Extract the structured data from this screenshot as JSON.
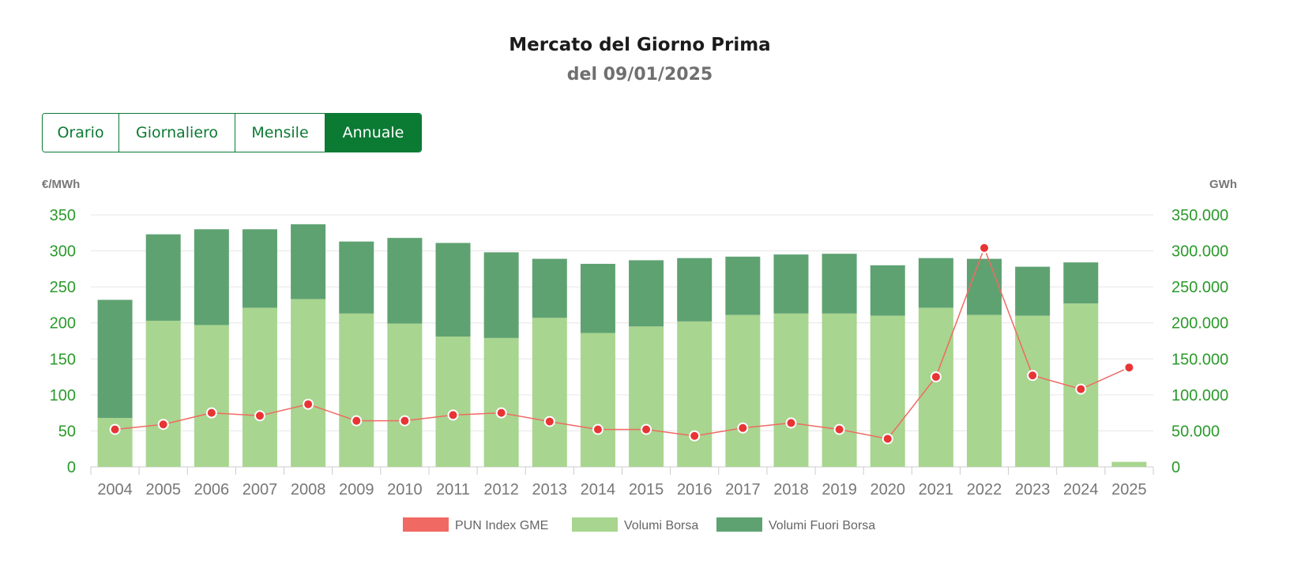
{
  "header": {
    "title": "Mercato del Giorno Prima",
    "subtitle": "del 09/01/2025"
  },
  "tabs": [
    {
      "label": "Orario",
      "active": false
    },
    {
      "label": "Giornaliero",
      "active": false
    },
    {
      "label": "Mensile",
      "active": false
    },
    {
      "label": "Annuale",
      "active": true
    }
  ],
  "colors": {
    "accent": "#0b7a33",
    "pun_line": "#f06a63",
    "pun_point": "#e83434",
    "volumi_borsa": "#a8d58f",
    "volumi_fuori_borsa": "#5fa272",
    "axis_text_green": "#2a9a2a",
    "tick_text_gray": "#777777"
  },
  "chart_data": {
    "type": "bar",
    "left_axis_title": "€/MWh",
    "right_axis_title": "GWh",
    "left_ticks": [
      "0",
      "50",
      "100",
      "150",
      "200",
      "250",
      "300",
      "350"
    ],
    "right_ticks": [
      "0",
      "50.000",
      "100.000",
      "150.000",
      "200.000",
      "250.000",
      "300.000",
      "350.000"
    ],
    "ylim_left": [
      0,
      350
    ],
    "ylim_right": [
      0,
      350000
    ],
    "grid": true,
    "legend_position": "bottom",
    "categories": [
      "2004",
      "2005",
      "2006",
      "2007",
      "2008",
      "2009",
      "2010",
      "2011",
      "2012",
      "2013",
      "2014",
      "2015",
      "2016",
      "2017",
      "2018",
      "2019",
      "2020",
      "2021",
      "2022",
      "2023",
      "2024",
      "2025"
    ],
    "series": [
      {
        "name": "PUN Index GME",
        "type": "line",
        "axis": "left",
        "values": [
          52,
          59,
          75,
          71,
          87,
          64,
          64,
          72,
          75,
          63,
          52,
          52,
          43,
          54,
          61,
          52,
          39,
          125,
          304,
          127,
          108,
          138
        ]
      },
      {
        "name": "Volumi Borsa",
        "type": "bar",
        "stack": "volumi",
        "axis": "right",
        "values": [
          68000,
          203000,
          197000,
          221000,
          233000,
          213000,
          199000,
          181000,
          179000,
          207000,
          186000,
          195000,
          202000,
          211000,
          213000,
          213000,
          210000,
          221000,
          211000,
          210000,
          227000,
          7000
        ]
      },
      {
        "name": "Volumi Fuori Borsa",
        "type": "bar",
        "stack": "volumi",
        "axis": "right",
        "values": [
          164000,
          120000,
          133000,
          109000,
          104000,
          100000,
          119000,
          130000,
          119000,
          82000,
          96000,
          92000,
          88000,
          81000,
          82000,
          83000,
          70000,
          69000,
          78000,
          68000,
          57000,
          0
        ]
      }
    ]
  }
}
